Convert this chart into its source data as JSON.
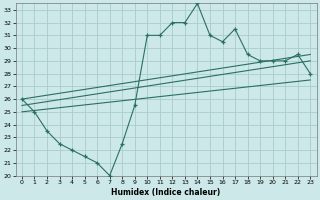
{
  "xlabel": "Humidex (Indice chaleur)",
  "bg_color": "#cce8e8",
  "grid_color": "#aacccc",
  "line_color": "#2a7060",
  "xlim": [
    -0.5,
    23.5
  ],
  "ylim": [
    20,
    33.5
  ],
  "xticks": [
    0,
    1,
    2,
    3,
    4,
    5,
    6,
    7,
    8,
    9,
    10,
    11,
    12,
    13,
    14,
    15,
    16,
    17,
    18,
    19,
    20,
    21,
    22,
    23
  ],
  "yticks": [
    20,
    21,
    22,
    23,
    24,
    25,
    26,
    27,
    28,
    29,
    30,
    31,
    32,
    33
  ],
  "series1_x": [
    0,
    1,
    2,
    3,
    4,
    5,
    6,
    7,
    8,
    9,
    10,
    11,
    12,
    13,
    14,
    15,
    16,
    17,
    18,
    19,
    20,
    21,
    22,
    23
  ],
  "series1_y": [
    26.0,
    25.0,
    23.5,
    22.5,
    22.0,
    21.5,
    21.0,
    20.0,
    22.5,
    25.5,
    31.0,
    31.0,
    32.0,
    32.0,
    33.5,
    31.0,
    30.5,
    31.5,
    29.5,
    29.0,
    29.0,
    29.0,
    29.5,
    28.0
  ],
  "line2_x": [
    0,
    23
  ],
  "line2_y": [
    26.0,
    29.5
  ],
  "line3_x": [
    0,
    23
  ],
  "line3_y": [
    25.5,
    29.0
  ],
  "line4_x": [
    0,
    23
  ],
  "line4_y": [
    25.0,
    27.5
  ]
}
